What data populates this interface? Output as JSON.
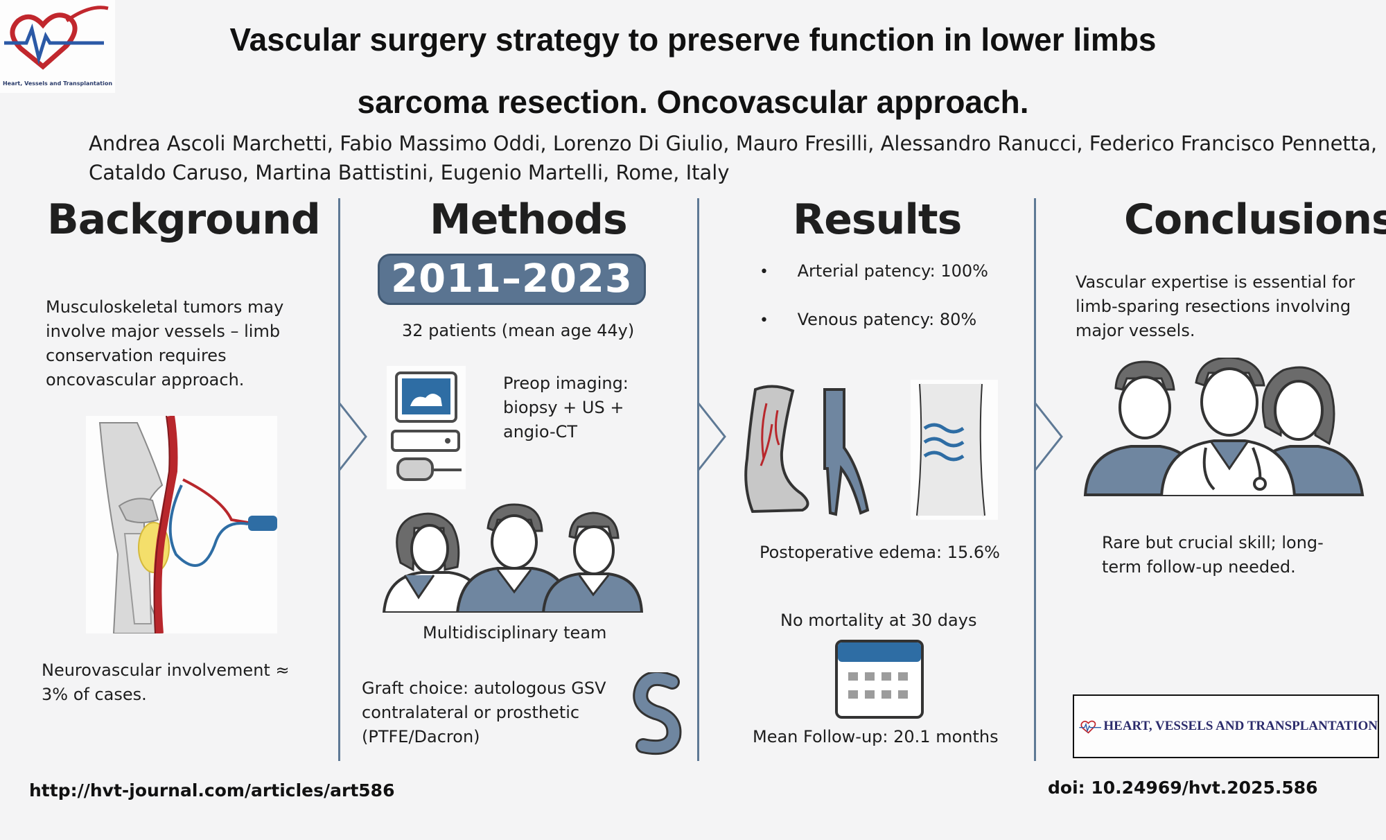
{
  "header": {
    "logo_caption": "Heart, Vessels and Transplantation",
    "title_line1": "Vascular surgery strategy to preserve function in lower limbs",
    "title_line2": "sarcoma resection. Oncovascular approach.",
    "authors_line1": "Andrea Ascoli Marchetti, Fabio Massimo Oddi, Lorenzo Di Giulio, Mauro Fresilli, Alessandro Ranucci, Federico Francisco Pennetta,",
    "authors_line2": "Cataldo Caruso, Martina Battistini, Eugenio Martelli, Rome, Italy"
  },
  "background": {
    "heading": "Background",
    "text": "Musculoskeletal tumors may involve major vessels – limb conservation requires oncovascular approach.",
    "footnote": "Neurovascular involvement ≈ 3% of cases."
  },
  "methods": {
    "heading": "Methods",
    "years": "2011–2023",
    "patients": "32 patients (mean age 44y)",
    "imaging": "Preop imaging: biopsy + US + angio-CT",
    "team": "Multidisciplinary team",
    "graft": "Graft choice: autologous GSV contralateral or prosthetic (PTFE/Dacron)"
  },
  "results": {
    "heading": "Results",
    "bullets": [
      "Arterial patency: 100%",
      "Venous patency: 80%"
    ],
    "edema": "Postoperative edema: 15.6%",
    "mortality": "No mortality at 30 days",
    "followup": "Mean Follow-up: 20.1 months"
  },
  "conclusions": {
    "heading": "Conclusions",
    "text": "Vascular expertise is essential for limb-sparing resections involving major vessels.",
    "skill": "Rare but crucial skill; long-term follow-up needed."
  },
  "footer": {
    "url": "http://hvt-journal.com/articles/art586",
    "doi": "doi: 10.24969/hvt.2025.586",
    "journal_name": "HEART, VESSELS AND TRANSPLANTATION"
  },
  "colors": {
    "accent_blue": "#5a7491",
    "divider": "#5e7995",
    "artery_red": "#b8272c",
    "tumor_yellow": "#f4df6b"
  },
  "icons": [
    "heart-logo-icon",
    "computer-imaging-icon",
    "team-icon",
    "graft-tube-icon",
    "leg-vessel-icon",
    "vein-y-icon",
    "edema-leg-icon",
    "calendar-icon",
    "doctors-icon"
  ]
}
